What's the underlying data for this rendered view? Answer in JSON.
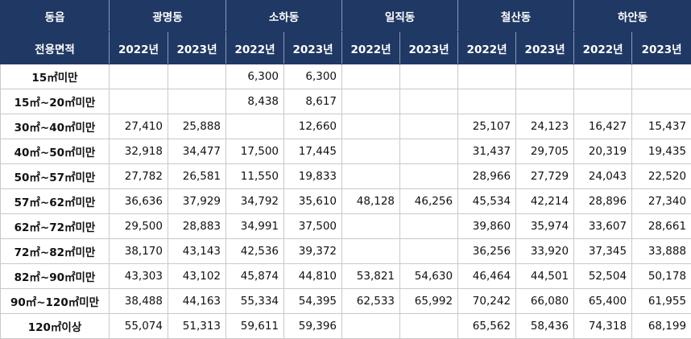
{
  "header": {
    "group_label": "동읍",
    "area_label": "전용면적",
    "districts": [
      "광명동",
      "소하동",
      "일직동",
      "철산동",
      "하안동"
    ],
    "years": [
      "2022년",
      "2023년",
      "2022년",
      "2023년",
      "2022년",
      "2023년",
      "2022년",
      "2023년",
      "2022년",
      "2023년"
    ]
  },
  "table": {
    "rows": [
      {
        "label": "15㎡미만",
        "values": [
          null,
          null,
          "6,300",
          "6,300",
          null,
          null,
          null,
          null,
          null,
          null
        ]
      },
      {
        "label": "15㎡~20㎡미만",
        "values": [
          null,
          null,
          "8,438",
          "8,617",
          null,
          null,
          null,
          null,
          null,
          null
        ]
      },
      {
        "label": "30㎡~40㎡미만",
        "values": [
          "27,410",
          "25,888",
          null,
          "12,660",
          null,
          null,
          "25,107",
          "24,123",
          "16,427",
          "15,437"
        ]
      },
      {
        "label": "40㎡~50㎡미만",
        "values": [
          "32,918",
          "34,477",
          "17,500",
          "17,445",
          null,
          null,
          "31,437",
          "29,705",
          "20,319",
          "19,435"
        ]
      },
      {
        "label": "50㎡~57㎡미만",
        "values": [
          "27,782",
          "26,581",
          "11,550",
          "19,833",
          null,
          null,
          "28,966",
          "27,729",
          "24,043",
          "22,520"
        ]
      },
      {
        "label": "57㎡~62㎡미만",
        "values": [
          "36,636",
          "37,929",
          "34,792",
          "35,610",
          "48,128",
          "46,256",
          "45,534",
          "42,214",
          "28,896",
          "27,340"
        ]
      },
      {
        "label": "62㎡~72㎡미만",
        "values": [
          "29,500",
          "28,883",
          "34,991",
          "37,500",
          null,
          null,
          "39,860",
          "35,974",
          "33,607",
          "28,661"
        ]
      },
      {
        "label": "72㎡~82㎡미만",
        "values": [
          "38,170",
          "43,143",
          "42,536",
          "39,372",
          null,
          null,
          "36,256",
          "33,920",
          "37,345",
          "33,888"
        ]
      },
      {
        "label": "82㎡~90㎡미만",
        "values": [
          "43,303",
          "43,102",
          "45,874",
          "44,810",
          "53,821",
          "54,630",
          "46,464",
          "44,501",
          "52,504",
          "50,178"
        ]
      },
      {
        "label": "90㎡~120㎡미만",
        "values": [
          "38,488",
          "44,163",
          "55,334",
          "54,395",
          "62,533",
          "65,992",
          "70,242",
          "66,080",
          "65,400",
          "61,955"
        ]
      },
      {
        "label": "120㎡이상",
        "values": [
          "55,074",
          "51,313",
          "59,611",
          "59,396",
          null,
          null,
          "65,562",
          "58,436",
          "74,318",
          "68,199"
        ]
      }
    ]
  }
}
